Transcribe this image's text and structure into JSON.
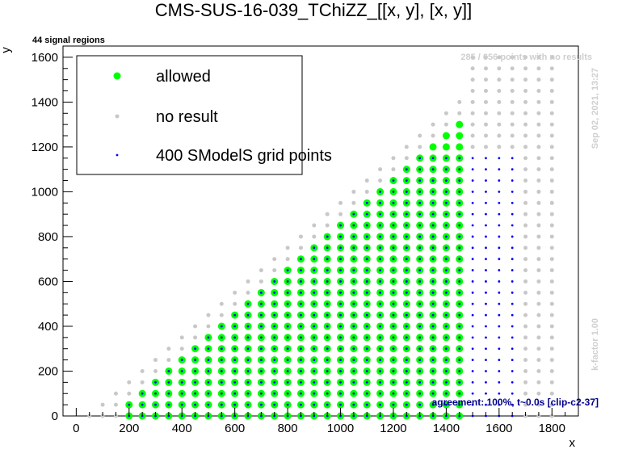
{
  "chart_data": {
    "type": "scatter",
    "title": "CMS-SUS-16-039_TChiZZ_[[x, y], [x, y]]",
    "xlabel": "x",
    "ylabel": "y",
    "xlim": [
      -50,
      1900
    ],
    "ylim": [
      0,
      1650
    ],
    "x_ticks": [
      0,
      200,
      400,
      600,
      800,
      1000,
      1200,
      1400,
      1600,
      1800
    ],
    "y_ticks": [
      0,
      200,
      400,
      600,
      800,
      1000,
      1200,
      1400,
      1600
    ],
    "grid": false,
    "legend_position": "top-left",
    "annotations": {
      "top_left": "44 signal regions",
      "top_right": "285 / 656 points with no results",
      "right_date": "Sep 02, 2021, 13:27",
      "right_kfactor": "k-factor 1.00",
      "bottom_right": "agreement: 100%, t~0.0s [clip-c2-37]"
    },
    "series": [
      {
        "name": "allowed",
        "color": "#00ff00",
        "marker": "large-dot",
        "region": "200 <= x <= 1450, 0 <= y <= x - 150, step 50",
        "x_range": [
          200,
          1450
        ],
        "y_max_offset": 150,
        "step": 50
      },
      {
        "name": "no result",
        "color": "#c8c8c8",
        "marker": "small-dot",
        "region": "x >= 50, step 50, up to y = x - 50 (x < 1500), y <= 1600 (x >= 1500); excluding allowed and grid points",
        "x_range": [
          50,
          1800
        ],
        "y_max_offset": 50,
        "y_cap": 1600,
        "step": 50
      },
      {
        "name": "400 SModelS grid points",
        "color": "#0000ff",
        "marker": "tiny-dot",
        "region": "200 <= x <= 1650, 0 <= y <= x - 150, y <= 1150, step 50",
        "x_range": [
          200,
          1650
        ],
        "y_max_offset": 150,
        "y_cap": 1150,
        "step": 50
      }
    ]
  }
}
